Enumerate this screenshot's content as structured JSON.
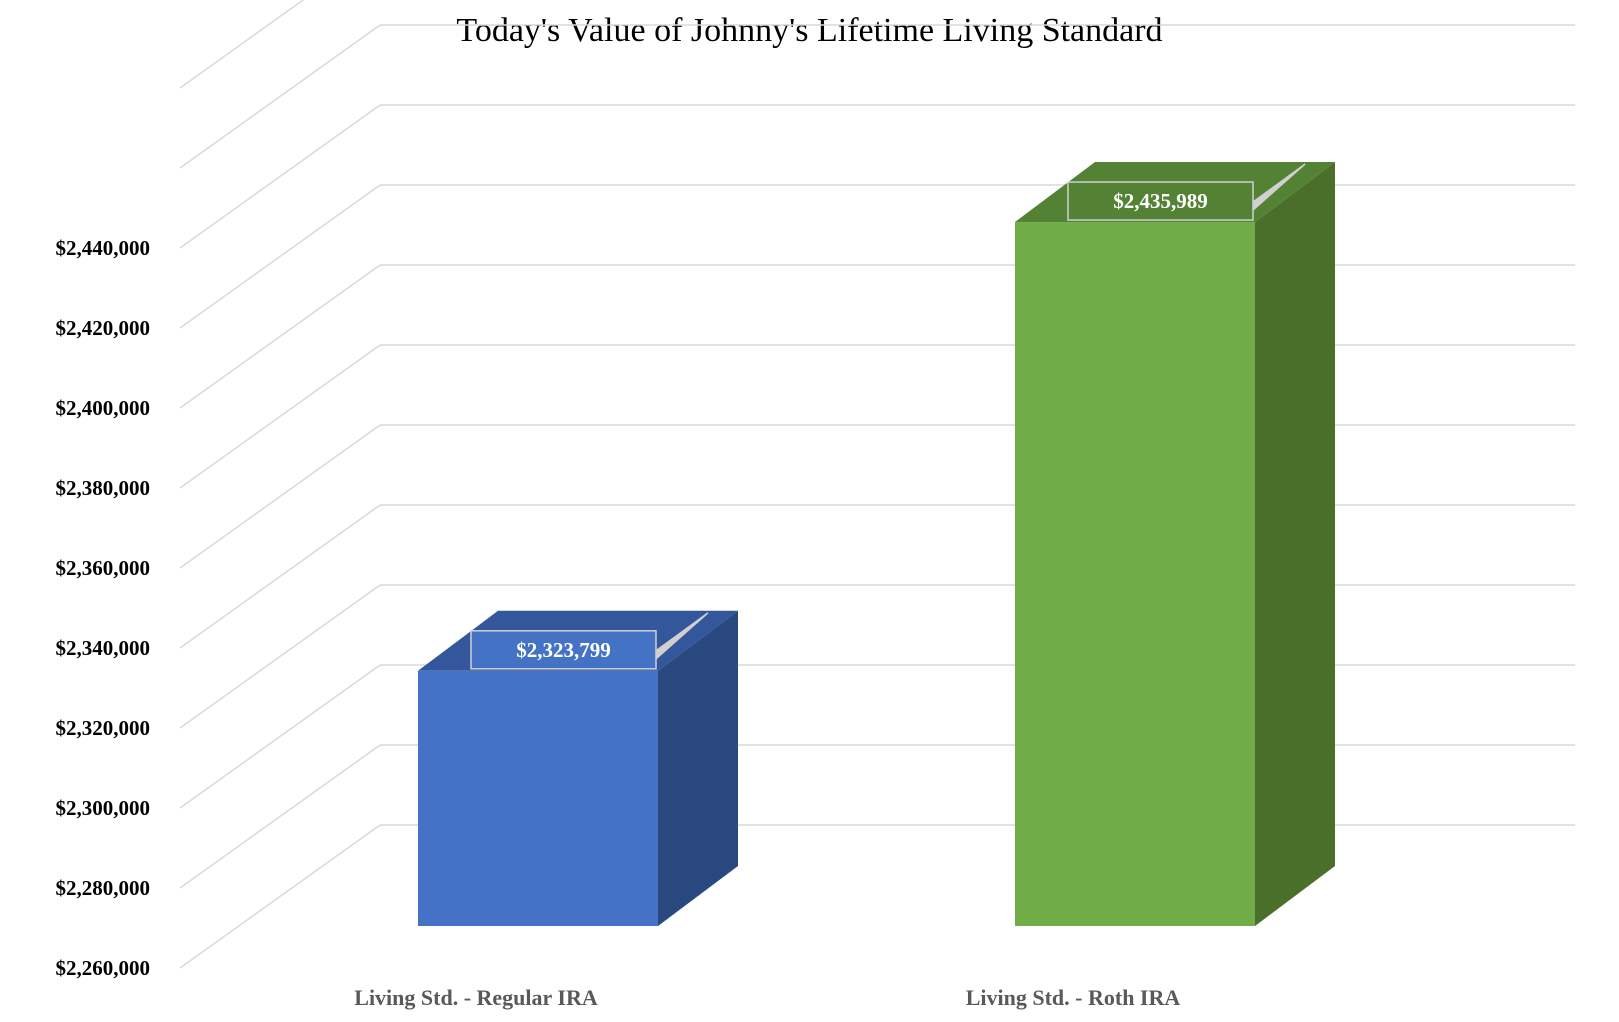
{
  "chart_data": {
    "type": "bar",
    "title": "Today's Value of Johnny's Lifetime Living Standard",
    "categories": [
      "Living Std. - Regular IRA",
      "Living Std. - Roth IRA"
    ],
    "values": [
      2323799,
      2435989
    ],
    "value_labels": [
      "$2,323,799",
      "$2,435,989"
    ],
    "ylim": [
      2260000,
      2480000
    ],
    "yticks": [
      2260000,
      2280000,
      2300000,
      2320000,
      2340000,
      2360000,
      2380000,
      2400000,
      2420000,
      2440000
    ],
    "ytick_labels": [
      "$2,260,000",
      "$2,280,000",
      "$2,300,000",
      "$2,320,000",
      "$2,340,000",
      "$2,360,000",
      "$2,380,000",
      "$2,400,000",
      "$2,420,000",
      "$2,440,000"
    ],
    "grid": true,
    "style": "3d-column",
    "colors": {
      "bars": [
        "#4472C4",
        "#70AD47"
      ],
      "bar_tops": [
        "#34569A",
        "#548235"
      ],
      "bar_sides": [
        "#2A4880",
        "#4A6F2B"
      ],
      "grid": "#D9D9D9"
    }
  }
}
